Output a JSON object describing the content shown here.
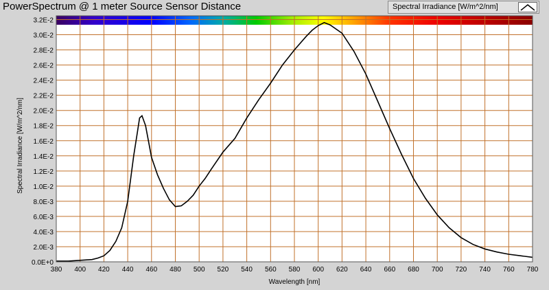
{
  "window": {
    "title": "PowerSpectrum @ 1 meter Source Sensor Distance"
  },
  "legend": {
    "label": "Spectral Irradiance [W/m^2/nm]",
    "icon": "line-sample-icon"
  },
  "colors": {
    "background": "#d4d4d4",
    "plot_background": "#ffffff",
    "grid": "#c0702a",
    "line": "#000000"
  },
  "chart_data": {
    "type": "line",
    "title": "PowerSpectrum @ 1 meter Source Sensor Distance",
    "xlabel": "Wavelength [nm]",
    "ylabel": "Spectral Irradiance [W/m^2/nm]",
    "xlim": [
      380,
      780
    ],
    "ylim": [
      0,
      0.0325
    ],
    "grid": true,
    "legend_position": "top-right",
    "color_band": "visible spectrum (violet to red) across top of plot",
    "x_ticks": [
      "380",
      "400",
      "420",
      "440",
      "460",
      "480",
      "500",
      "520",
      "540",
      "560",
      "580",
      "600",
      "620",
      "640",
      "660",
      "680",
      "700",
      "720",
      "740",
      "760",
      "780"
    ],
    "y_ticks": [
      {
        "value": 0,
        "label": "0.0E+0"
      },
      {
        "value": 0.002,
        "label": "2.0E-3"
      },
      {
        "value": 0.004,
        "label": "4.0E-3"
      },
      {
        "value": 0.006,
        "label": "6.0E-3"
      },
      {
        "value": 0.008,
        "label": "8.0E-3"
      },
      {
        "value": 0.01,
        "label": "1.0E-2"
      },
      {
        "value": 0.012,
        "label": "1.2E-2"
      },
      {
        "value": 0.014,
        "label": "1.4E-2"
      },
      {
        "value": 0.016,
        "label": "1.6E-2"
      },
      {
        "value": 0.018,
        "label": "1.8E-2"
      },
      {
        "value": 0.02,
        "label": "2.0E-2"
      },
      {
        "value": 0.022,
        "label": "2.2E-2"
      },
      {
        "value": 0.024,
        "label": "2.4E-2"
      },
      {
        "value": 0.026,
        "label": "2.6E-2"
      },
      {
        "value": 0.028,
        "label": "2.8E-2"
      },
      {
        "value": 0.03,
        "label": "3.0E-2"
      },
      {
        "value": 0.032,
        "label": "3.2E-2"
      }
    ],
    "series": [
      {
        "name": "Spectral Irradiance [W/m^2/nm]",
        "x": [
          380,
          390,
          400,
          410,
          415,
          420,
          425,
          430,
          435,
          440,
          445,
          448,
          450,
          452,
          455,
          458,
          460,
          465,
          470,
          475,
          480,
          485,
          490,
          495,
          500,
          505,
          510,
          520,
          530,
          540,
          550,
          560,
          570,
          580,
          590,
          595,
          600,
          605,
          610,
          620,
          630,
          640,
          650,
          660,
          670,
          680,
          690,
          700,
          710,
          720,
          730,
          740,
          750,
          760,
          770,
          780
        ],
        "y": [
          0.0001,
          0.0001,
          0.0002,
          0.0003,
          0.0005,
          0.0008,
          0.0015,
          0.0027,
          0.0045,
          0.008,
          0.014,
          0.017,
          0.019,
          0.0193,
          0.018,
          0.0155,
          0.0138,
          0.0115,
          0.0097,
          0.0082,
          0.0073,
          0.0074,
          0.008,
          0.0088,
          0.01,
          0.011,
          0.0122,
          0.0145,
          0.0163,
          0.019,
          0.0214,
          0.0236,
          0.026,
          0.028,
          0.0298,
          0.0306,
          0.0312,
          0.0316,
          0.0313,
          0.0302,
          0.0278,
          0.0248,
          0.0212,
          0.0176,
          0.0142,
          0.011,
          0.0084,
          0.0062,
          0.0045,
          0.0032,
          0.0023,
          0.0017,
          0.0013,
          0.001,
          0.0008,
          0.0006
        ]
      }
    ]
  }
}
